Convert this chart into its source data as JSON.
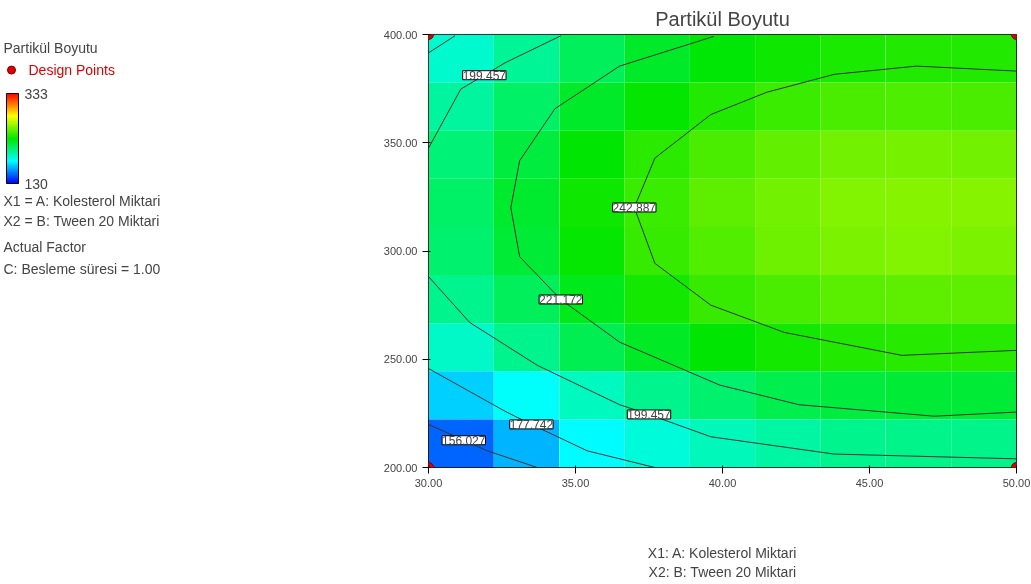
{
  "chart_data": {
    "type": "heatmap",
    "title": "Partikül Boyutu",
    "xlabel": "X1: A: Kolesterol Miktari\nX2: B: Tween 20 Miktari",
    "legend_title": "Partikül Boyutu",
    "x": [
      31.11,
      33.33,
      35.56,
      37.78,
      40,
      42.22,
      44.44,
      46.67,
      48.89
    ],
    "y": [
      388.89,
      366.67,
      344.44,
      322.22,
      300,
      277.78,
      255.56,
      233.33,
      211.11
    ],
    "cells": [
      [
        191,
        202,
        214,
        223,
        230,
        234,
        237,
        238,
        238
      ],
      [
        200,
        211,
        223,
        232,
        238,
        243,
        246,
        247,
        246
      ],
      [
        208,
        219,
        231,
        240,
        246,
        251,
        254,
        255,
        254
      ],
      [
        211,
        222,
        234,
        243,
        250,
        254,
        257,
        258,
        258
      ],
      [
        210,
        221,
        233,
        242,
        248,
        253,
        256,
        257,
        256
      ],
      [
        203,
        214,
        226,
        235,
        242,
        246,
        249,
        250,
        250
      ],
      [
        192,
        203,
        215,
        224,
        231,
        235,
        238,
        239,
        239
      ],
      [
        172,
        182,
        194,
        203,
        210,
        216,
        219,
        221,
        221
      ],
      [
        150,
        166,
        180,
        188,
        195,
        199,
        203,
        204,
        204
      ]
    ],
    "clim": [
      130,
      333
    ],
    "cticks": [
      130,
      333
    ],
    "xlim": [
      30,
      50
    ],
    "ylim": [
      200,
      400
    ],
    "xticks": [
      {
        "value": 30,
        "label": "30.00"
      },
      {
        "value": 35,
        "label": "35.00"
      },
      {
        "value": 40,
        "label": "40.00"
      },
      {
        "value": 45,
        "label": "45.00"
      },
      {
        "value": 50,
        "label": "50.00"
      }
    ],
    "yticks": [
      {
        "value": 200,
        "label": "200.00"
      },
      {
        "value": 250,
        "label": "250.00"
      },
      {
        "value": 300,
        "label": "300.00"
      },
      {
        "value": 350,
        "label": "350.00"
      },
      {
        "value": 400,
        "label": "400.00"
      }
    ],
    "series": [
      {
        "type": "line",
        "color": "#333333",
        "x": [
          30,
          30.9
        ],
        "values": [
          391.5,
          399.4
        ]
      },
      {
        "type": "line",
        "color": "#333333",
        "x": [
          30,
          31.1,
          31.9,
          32.6,
          34.5
        ],
        "values": [
          347.5,
          374.8,
          381.2,
          386.9,
          399.4
        ]
      },
      {
        "type": "line",
        "color": "#333333",
        "x": [
          39.7,
          36.5,
          34.3,
          33.1,
          32.8,
          33.1,
          34.5,
          36.5,
          39.9,
          42.6,
          47.2,
          50
        ],
        "values": [
          399.1,
          385.4,
          365.7,
          341.7,
          320.0,
          297.4,
          277.6,
          257.9,
          238.1,
          229,
          223.7,
          225.6
        ]
      },
      {
        "type": "line",
        "color": "#333333",
        "x": [
          50,
          46.6,
          43.8,
          41.5,
          39.6,
          37.7,
          37.0,
          37.7,
          39.6,
          42.1,
          46.1,
          50
        ],
        "values": [
          383.1,
          385.4,
          381.6,
          373.3,
          363,
          342.9,
          320.1,
          294.3,
          275,
          262.4,
          251.8,
          254.1
        ]
      },
      {
        "type": "line",
        "color": "#333333",
        "x": [
          30,
          31.4,
          33.7,
          36.5,
          37.5,
          39.6,
          43.8,
          50
        ],
        "values": [
          288.2,
          267,
          247.2,
          229,
          224.5,
          214.2,
          206.2,
          204
        ]
      },
      {
        "type": "line",
        "color": "#333333",
        "x": [
          30,
          32.6,
          33.5,
          35.4,
          37.7
        ],
        "values": [
          245.7,
          226,
          219.9,
          207.7,
          200
        ]
      },
      {
        "type": "line",
        "color": "#333333",
        "x": [
          30,
          31.2,
          32,
          33.7
        ],
        "values": [
          219.9,
          212.6,
          207.7,
          200
        ]
      },
      {
        "name": "Design Points",
        "type": "scatter",
        "marker": "circle",
        "color": "#e00000",
        "x": [
          30,
          30,
          50,
          50
        ],
        "values": [
          200,
          400,
          400,
          200
        ]
      }
    ],
    "legend": "left",
    "grid": false,
    "annotations": [
      {
        "text": "199.457",
        "x": 31.9,
        "y": 381.2
      },
      {
        "text": "242.887",
        "x": 37.0,
        "y": 320.1
      },
      {
        "text": "221.172",
        "x": 34.5,
        "y": 277.6
      },
      {
        "text": "199.457",
        "x": 37.5,
        "y": 224.5
      },
      {
        "text": "177.742",
        "x": 33.5,
        "y": 219.9
      },
      {
        "text": "156.027",
        "x": 31.2,
        "y": 212.6
      },
      "X1 = A: Kolesterol Miktari",
      "X2 = B: Tween 20 Miktari",
      "Actual Factor",
      "C: Besleme süresi = 1.00"
    ]
  }
}
